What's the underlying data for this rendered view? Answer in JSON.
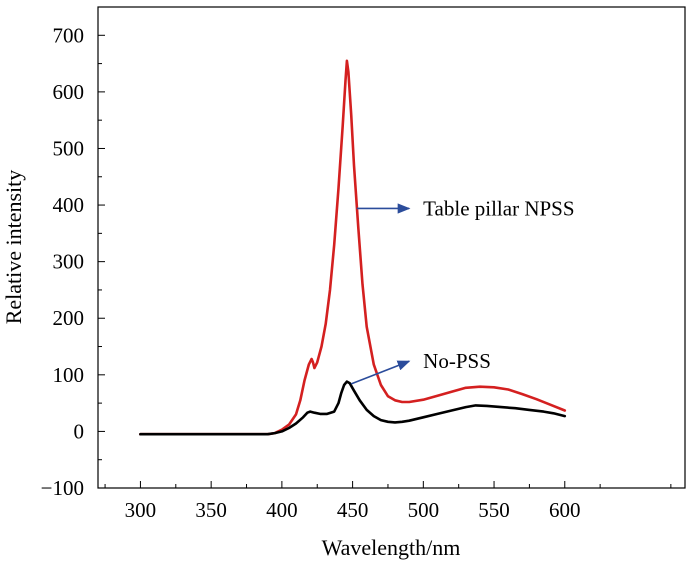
{
  "chart_data": {
    "type": "line",
    "xlabel": "Wavelength/nm",
    "ylabel": "Relative intensity",
    "xlim": [
      270,
      685
    ],
    "ylim": [
      -100,
      750
    ],
    "xticks": [
      300,
      350,
      400,
      450,
      500,
      550,
      600
    ],
    "yticks": [
      -100,
      0,
      100,
      200,
      300,
      400,
      500,
      600,
      700
    ],
    "grid": false,
    "series": [
      {
        "name": "Table pillar NPSS",
        "color": "#d42020",
        "points": [
          [
            300,
            -5
          ],
          [
            390,
            -5
          ],
          [
            395,
            -3
          ],
          [
            400,
            3
          ],
          [
            405,
            12
          ],
          [
            410,
            30
          ],
          [
            413,
            55
          ],
          [
            416,
            90
          ],
          [
            419,
            118
          ],
          [
            421,
            128
          ],
          [
            422,
            122
          ],
          [
            423,
            112
          ],
          [
            425,
            122
          ],
          [
            428,
            150
          ],
          [
            431,
            190
          ],
          [
            434,
            250
          ],
          [
            437,
            330
          ],
          [
            440,
            430
          ],
          [
            443,
            540
          ],
          [
            445,
            620
          ],
          [
            446,
            655
          ],
          [
            447,
            635
          ],
          [
            449,
            560
          ],
          [
            451,
            470
          ],
          [
            454,
            360
          ],
          [
            457,
            260
          ],
          [
            460,
            185
          ],
          [
            465,
            118
          ],
          [
            470,
            82
          ],
          [
            475,
            62
          ],
          [
            480,
            55
          ],
          [
            485,
            52
          ],
          [
            490,
            52
          ],
          [
            500,
            56
          ],
          [
            510,
            63
          ],
          [
            520,
            70
          ],
          [
            530,
            77
          ],
          [
            540,
            79
          ],
          [
            550,
            78
          ],
          [
            560,
            74
          ],
          [
            570,
            66
          ],
          [
            580,
            57
          ],
          [
            590,
            47
          ],
          [
            600,
            37
          ]
        ]
      },
      {
        "name": "No-PSS",
        "color": "#000000",
        "points": [
          [
            300,
            -5
          ],
          [
            390,
            -5
          ],
          [
            395,
            -3
          ],
          [
            400,
            0
          ],
          [
            405,
            6
          ],
          [
            410,
            14
          ],
          [
            415,
            25
          ],
          [
            418,
            33
          ],
          [
            420,
            35
          ],
          [
            423,
            33
          ],
          [
            427,
            31
          ],
          [
            432,
            31
          ],
          [
            437,
            35
          ],
          [
            440,
            50
          ],
          [
            442,
            68
          ],
          [
            444,
            82
          ],
          [
            446,
            88
          ],
          [
            448,
            85
          ],
          [
            451,
            72
          ],
          [
            455,
            55
          ],
          [
            460,
            38
          ],
          [
            465,
            27
          ],
          [
            470,
            20
          ],
          [
            475,
            17
          ],
          [
            480,
            16
          ],
          [
            485,
            17
          ],
          [
            490,
            19
          ],
          [
            500,
            25
          ],
          [
            510,
            31
          ],
          [
            520,
            37
          ],
          [
            530,
            43
          ],
          [
            537,
            46
          ],
          [
            545,
            45
          ],
          [
            555,
            43
          ],
          [
            565,
            41
          ],
          [
            575,
            38
          ],
          [
            585,
            35
          ],
          [
            592,
            32
          ],
          [
            600,
            27
          ]
        ]
      }
    ],
    "annotations": [
      {
        "text": "Table pillar NPSS",
        "arrow_from": [
          453,
          394
        ],
        "arrow_to": [
          490,
          394
        ]
      },
      {
        "text": "No-PSS",
        "arrow_from": [
          449,
          84
        ],
        "arrow_to": [
          490,
          124
        ]
      }
    ]
  }
}
